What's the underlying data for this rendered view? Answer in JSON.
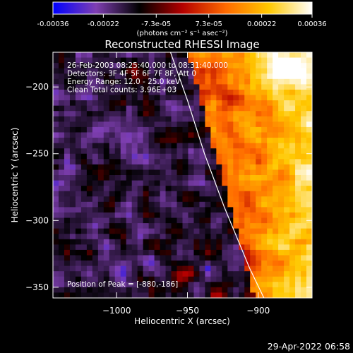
{
  "chart_data": {
    "type": "heatmap",
    "title": "Reconstructed RHESSI Image",
    "xlabel": "Heliocentric X (arcsec)",
    "ylabel": "Heliocentric Y (arcsec)",
    "xlim": [
      -1045,
      -862
    ],
    "ylim": [
      -358,
      -174
    ],
    "xticks": [
      -1000,
      -950,
      -900
    ],
    "yticks": [
      -200,
      -250,
      -300,
      -350
    ],
    "colorbar": {
      "range": [
        -0.00036,
        0.00036
      ],
      "tick_values": [
        -0.00036,
        -0.00022,
        -7.3e-05,
        7.3e-05,
        0.00022,
        0.00036
      ],
      "tick_labels": [
        "-0.00036",
        "-0.00022",
        "-7.3e-05",
        "7.3e-05",
        "0.00022",
        "0.00036"
      ],
      "unit_label": "(photons cm⁻² s⁻¹ asec⁻²)",
      "colors": [
        "#0000ff",
        "#7f3fb2",
        "#000000",
        "#b40000",
        "#ff6a00",
        "#ffc800",
        "#ffffff"
      ]
    },
    "info_lines": [
      "26-Feb-2003 08:25:40.000 to 08:31:40.000",
      "Detectors: 3F 4F 5F 6F 7F 8F, Att 0",
      "Energy Range: 12.0 - 25.0 keV",
      "Clean     Total counts: 3.96E+03"
    ],
    "peak_label": "Position of Peak = [-880,-186]",
    "peak": [
      -880,
      -186
    ],
    "limb_curve": [
      [
        -962,
        -174
      ],
      [
        -950,
        -210
      ],
      [
        -938,
        -250
      ],
      [
        -924,
        -290
      ],
      [
        -906,
        -336
      ],
      [
        -896,
        -358
      ]
    ],
    "grid": false
  },
  "footer": {
    "timestamp": "29-Apr-2022 06:58"
  }
}
